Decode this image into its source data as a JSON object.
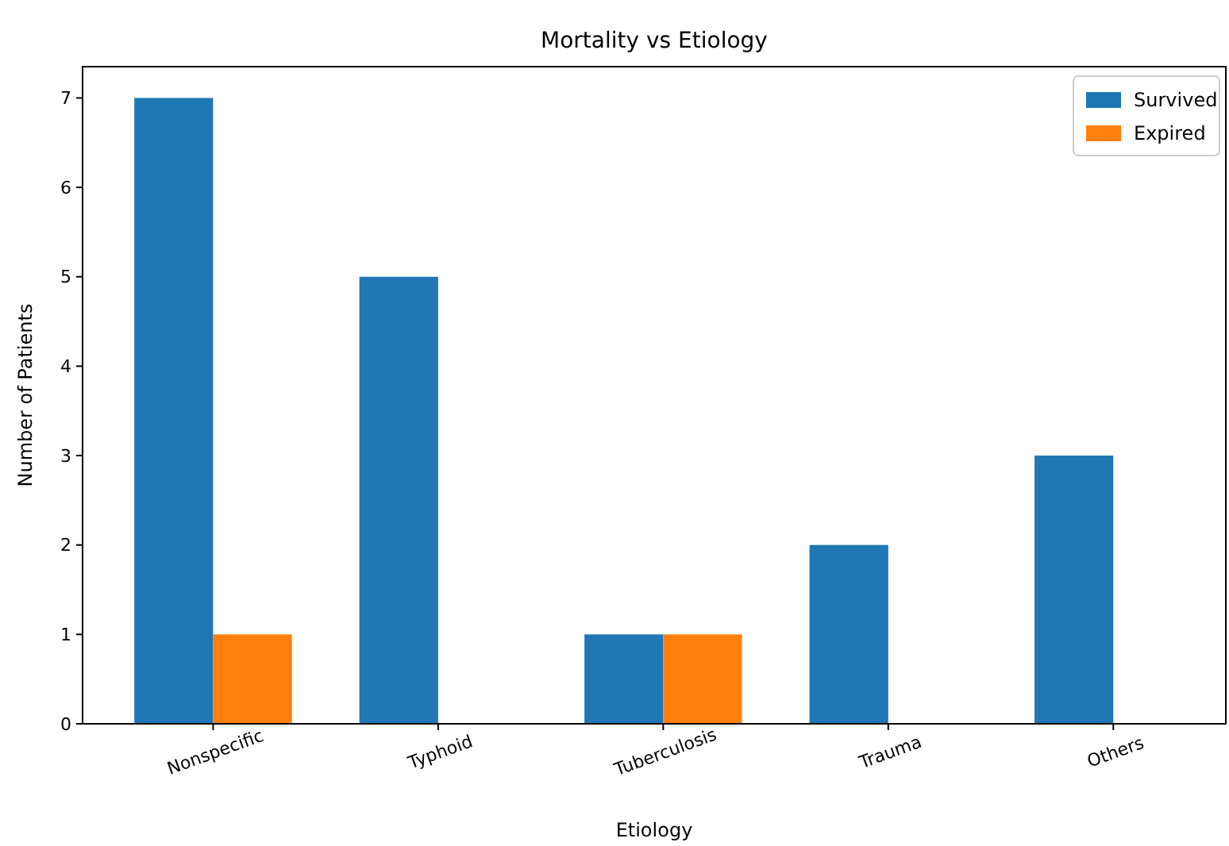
{
  "chart_data": {
    "type": "bar",
    "title": "Mortality vs Etiology",
    "xlabel": "Etiology",
    "ylabel": "Number of Patients",
    "categories": [
      "Nonspecific",
      "Typhoid",
      "Tuberculosis",
      "Trauma",
      "Others"
    ],
    "series": [
      {
        "name": "Survived",
        "color": "#1f77b4",
        "values": [
          7,
          5,
          1,
          2,
          3
        ]
      },
      {
        "name": "Expired",
        "color": "#ff7f0e",
        "values": [
          1,
          0,
          1,
          0,
          0
        ]
      }
    ],
    "ylim": [
      0,
      7.35
    ],
    "yticks": [
      0,
      1,
      2,
      3,
      4,
      5,
      6,
      7
    ],
    "grid": false,
    "legend": "top right"
  }
}
